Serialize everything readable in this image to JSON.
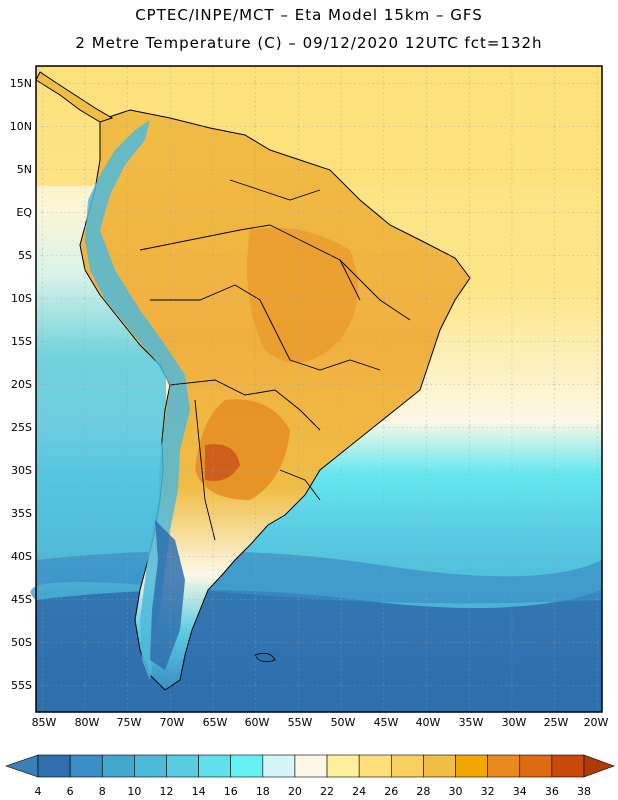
{
  "header": {
    "line1": "CPTEC/INPE/MCT –  Eta Model 15km – GFS",
    "line2": "2 Metre Temperature (C) – 09/12/2020 12UTC fct=132h"
  },
  "axes": {
    "lat_labels": [
      "15N",
      "10N",
      "5N",
      "EQ",
      "5S",
      "10S",
      "15S",
      "20S",
      "25S",
      "30S",
      "35S",
      "40S",
      "45S",
      "50S",
      "55S"
    ],
    "lon_labels": [
      "85W",
      "80W",
      "75W",
      "70W",
      "65W",
      "60W",
      "55W",
      "50W",
      "45W",
      "40W",
      "35W",
      "30W",
      "25W",
      "20W"
    ]
  },
  "colorbar": {
    "ticks": [
      "4",
      "6",
      "8",
      "10",
      "12",
      "14",
      "16",
      "18",
      "20",
      "22",
      "24",
      "26",
      "28",
      "30",
      "32",
      "34",
      "36",
      "38"
    ],
    "colors": [
      "#3a7fb8",
      "#2f6fad",
      "#3b8dc5",
      "#42a6cf",
      "#4fb9d9",
      "#58cde2",
      "#5fe0ea",
      "#66f2f4",
      "#d4f6fb",
      "#fdf8e6",
      "#fdf09a",
      "#fde07a",
      "#f8d060",
      "#f0bd45",
      "#f2a800",
      "#ea8a1e",
      "#de6a12",
      "#c94a08",
      "#b03a06"
    ]
  },
  "palette": {
    "ocean_north": "#fde07a",
    "land_warm": "#f0bd45",
    "land_hot": "#e58a1e",
    "cold_south": "#2f6fad",
    "frame": "#000000"
  }
}
